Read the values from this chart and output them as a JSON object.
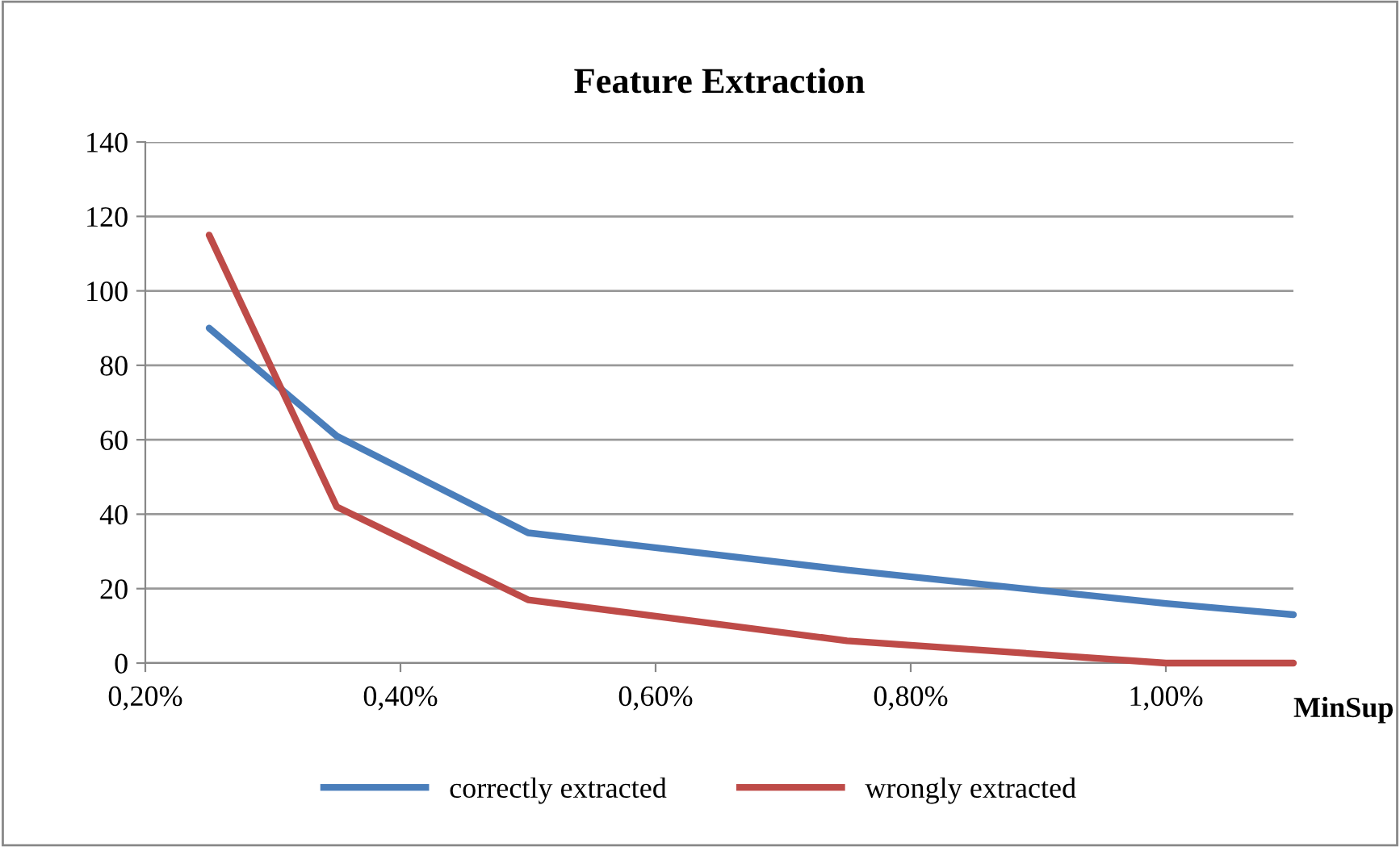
{
  "chart_data": {
    "type": "line",
    "title": "Feature Extraction",
    "xlabel": "MinSup",
    "x": [
      0.25,
      0.35,
      0.5,
      0.75,
      1.0,
      1.1
    ],
    "series": [
      {
        "name": "correctly extracted",
        "color": "#4a7ebb",
        "values": [
          90,
          61,
          35,
          25,
          16,
          13
        ]
      },
      {
        "name": "wrongly extracted",
        "color": "#be4b48",
        "values": [
          115,
          42,
          17,
          6,
          0,
          0
        ]
      }
    ],
    "xlim": [
      0.2,
      1.1
    ],
    "xticks": [
      {
        "value": 0.2,
        "label": "0,20%"
      },
      {
        "value": 0.4,
        "label": "0,40%"
      },
      {
        "value": 0.6,
        "label": "0,60%"
      },
      {
        "value": 0.8,
        "label": "0,80%"
      },
      {
        "value": 1.0,
        "label": "1,00%"
      }
    ],
    "ylim": [
      0,
      140
    ],
    "yticks": [
      0,
      20,
      40,
      60,
      80,
      100,
      120,
      140
    ],
    "grid": "y",
    "legend": "bottom",
    "marker": "none",
    "line_style": "solid"
  }
}
